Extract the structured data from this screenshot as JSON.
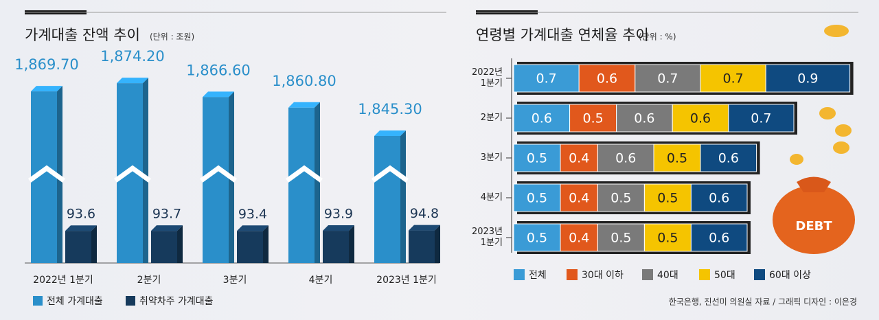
{
  "chart_data": [
    {
      "type": "bar",
      "title": "가계대출 잔액 추이",
      "subtitle": "(단위 : 조원)",
      "categories": [
        "2022년 1분기",
        "2분기",
        "3분기",
        "4분기",
        "2023년 1분기"
      ],
      "series": [
        {
          "name": "전체 가계대출",
          "color": "#2a8fca",
          "values": [
            1869.7,
            1874.2,
            1866.6,
            1860.8,
            1845.3
          ],
          "value_labels": [
            "1,869.70",
            "1,874.20",
            "1,866.60",
            "1,860.80",
            "1,845.30"
          ]
        },
        {
          "name": "취약차주 가계대출",
          "color": "#163a5c",
          "values": [
            93.6,
            93.7,
            93.4,
            93.9,
            94.8
          ]
        }
      ]
    },
    {
      "type": "stacked_barh",
      "title": "연령별 가계대출 연체율 추이",
      "subtitle": "(단위 : %)",
      "categories": [
        "2022년 1분기",
        "2분기",
        "3분기",
        "4분기",
        "2023년 1분기"
      ],
      "series": [
        {
          "name": "전체",
          "color": "#3a9bd6",
          "values": [
            0.7,
            0.6,
            0.5,
            0.5,
            0.5
          ]
        },
        {
          "name": "30대 이하",
          "color": "#e1581c",
          "values": [
            0.6,
            0.5,
            0.4,
            0.4,
            0.4
          ]
        },
        {
          "name": "40대",
          "color": "#7a7a7a",
          "values": [
            0.7,
            0.6,
            0.6,
            0.5,
            0.5
          ]
        },
        {
          "name": "50대",
          "color": "#f5c400",
          "values": [
            0.7,
            0.6,
            0.5,
            0.5,
            0.5
          ]
        },
        {
          "name": "60대 이상",
          "color": "#0f4a80",
          "values": [
            0.9,
            0.7,
            0.6,
            0.6,
            0.6
          ]
        }
      ],
      "annotations": [
        "DEBT"
      ],
      "source": "한국은행, 진선미 의원실 자료 / 그래픽 디자인 : 이은경"
    }
  ]
}
